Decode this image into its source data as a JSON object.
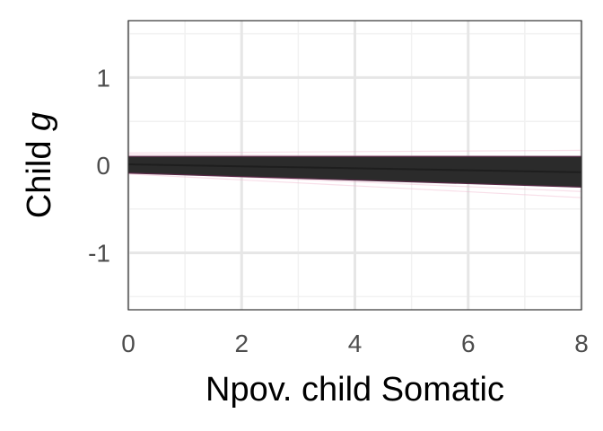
{
  "chart_data": {
    "type": "line",
    "title": "",
    "xlabel": "Npov. child Somatic",
    "ylabel_prefix": "Child ",
    "ylabel_var": "g",
    "xlim": [
      0,
      8
    ],
    "ylim": [
      -1.65,
      1.65
    ],
    "x_ticks": [
      0,
      2,
      4,
      6,
      8
    ],
    "x_tick_labels": [
      "0",
      "2",
      "4",
      "6",
      "8"
    ],
    "y_ticks": [
      -1,
      0,
      1
    ],
    "y_tick_labels": [
      "-1",
      "0",
      "1"
    ],
    "grid": true,
    "legend": "none",
    "series": [
      {
        "role": "posterior-draws-outer",
        "x": [
          0,
          8
        ],
        "lines": [
          [
            0.14,
            0.17
          ],
          [
            -0.1,
            -0.37
          ],
          [
            0.12,
            0.1
          ],
          [
            -0.08,
            -0.3
          ],
          [
            0.1,
            0.05
          ],
          [
            -0.06,
            -0.25
          ],
          [
            0.08,
            0.0
          ],
          [
            -0.04,
            -0.2
          ]
        ]
      },
      {
        "role": "posterior-draws-inner",
        "x": [
          0,
          8
        ],
        "lines": [
          [
            0.06,
            -0.02
          ],
          [
            -0.04,
            -0.22
          ],
          [
            0.05,
            -0.05
          ],
          [
            -0.03,
            -0.2
          ],
          [
            0.04,
            -0.07
          ],
          [
            -0.02,
            -0.18
          ],
          [
            0.03,
            -0.09
          ],
          [
            -0.01,
            -0.17
          ],
          [
            0.02,
            -0.1
          ],
          [
            0.0,
            -0.15
          ],
          [
            0.01,
            -0.12
          ],
          [
            0.0,
            -0.14
          ]
        ]
      },
      {
        "role": "band-upper",
        "x": [
          0,
          8
        ],
        "y": [
          0.1,
          0.1
        ]
      },
      {
        "role": "band-lower",
        "x": [
          0,
          8
        ],
        "y": [
          -0.09,
          -0.25
        ]
      },
      {
        "role": "mean",
        "x": [
          0,
          8
        ],
        "y": [
          0.01,
          -0.08
        ]
      }
    ],
    "colors": {
      "outer": "#f0b8cf",
      "inner": "#7a3058",
      "band": "#2b2b2b",
      "mean": "#1e1e1e",
      "edge": "#5a2a48",
      "grid_major": "#e6e6e6",
      "grid_minor": "#f1f1f1",
      "frame": "#333333",
      "background": "#ffffff"
    }
  }
}
